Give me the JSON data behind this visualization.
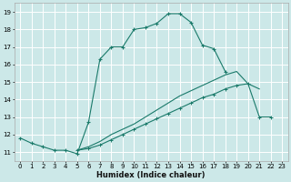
{
  "xlabel": "Humidex (Indice chaleur)",
  "bg_color": "#cce8e8",
  "grid_color": "#ffffff",
  "line_color": "#1a7a6a",
  "xlim": [
    -0.5,
    23.5
  ],
  "ylim": [
    10.5,
    19.5
  ],
  "xticks": [
    0,
    1,
    2,
    3,
    4,
    5,
    6,
    7,
    8,
    9,
    10,
    11,
    12,
    13,
    14,
    15,
    16,
    17,
    18,
    19,
    20,
    21,
    22,
    23
  ],
  "yticks": [
    11,
    12,
    13,
    14,
    15,
    16,
    17,
    18,
    19
  ],
  "line1_x": [
    0,
    1,
    2,
    3,
    4,
    5,
    6,
    7,
    8,
    9,
    10,
    11,
    12,
    13,
    14,
    15,
    16,
    17,
    18
  ],
  "line1_y": [
    11.8,
    11.5,
    11.3,
    11.1,
    11.1,
    10.9,
    12.7,
    16.3,
    17.0,
    17.0,
    18.0,
    18.1,
    18.35,
    18.9,
    18.9,
    18.4,
    17.1,
    16.9,
    15.6
  ],
  "line2_x": [
    5,
    6,
    7,
    8,
    9,
    10,
    11,
    12,
    13,
    14,
    15,
    16,
    17,
    18,
    19,
    20,
    21
  ],
  "line2_y": [
    11.1,
    11.3,
    11.6,
    12.0,
    12.3,
    12.6,
    13.0,
    13.4,
    13.8,
    14.2,
    14.5,
    14.8,
    15.1,
    15.4,
    15.6,
    14.9,
    14.6
  ],
  "line3_x": [
    5,
    6,
    7,
    8,
    9,
    10,
    11,
    12,
    13,
    14,
    15,
    16,
    17,
    18,
    19,
    20,
    21,
    22
  ],
  "line3_y": [
    11.1,
    11.2,
    11.4,
    11.7,
    12.0,
    12.3,
    12.6,
    12.9,
    13.2,
    13.5,
    13.8,
    14.1,
    14.3,
    14.6,
    14.8,
    14.9,
    13.0,
    13.0
  ]
}
